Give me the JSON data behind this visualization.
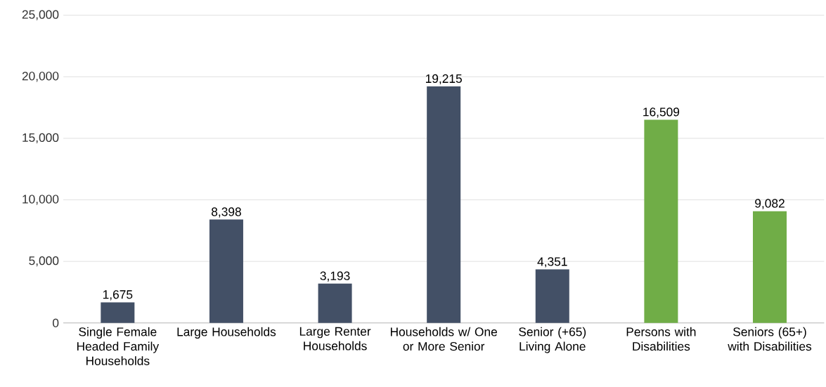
{
  "chart_data": {
    "type": "bar",
    "categories": [
      "Single Female Headed Family Households",
      "Large Households",
      "Large Renter Households",
      "Households w/ One or More Senior",
      "Senior (+65) Living Alone",
      "Persons with Disabilities",
      "Seniors (65+) with Disabilities"
    ],
    "values": [
      1675,
      8398,
      3193,
      19215,
      4351,
      16509,
      9082
    ],
    "colors": [
      "#435066",
      "#435066",
      "#435066",
      "#435066",
      "#435066",
      "#70ad47",
      "#70ad47"
    ],
    "ylim": [
      0,
      25000
    ],
    "yticks": [
      {
        "value": 0,
        "label": "0"
      },
      {
        "value": 5000,
        "label": "5,000"
      },
      {
        "value": 10000,
        "label": "10,000"
      },
      {
        "value": 15000,
        "label": "15,000"
      },
      {
        "value": 20000,
        "label": "20,000"
      },
      {
        "value": 25000,
        "label": "25,000"
      }
    ],
    "value_labels": [
      "1,675",
      "8,398",
      "3,193",
      "19,215",
      "4,351",
      "16,509",
      "9,082"
    ],
    "grid": "y"
  }
}
